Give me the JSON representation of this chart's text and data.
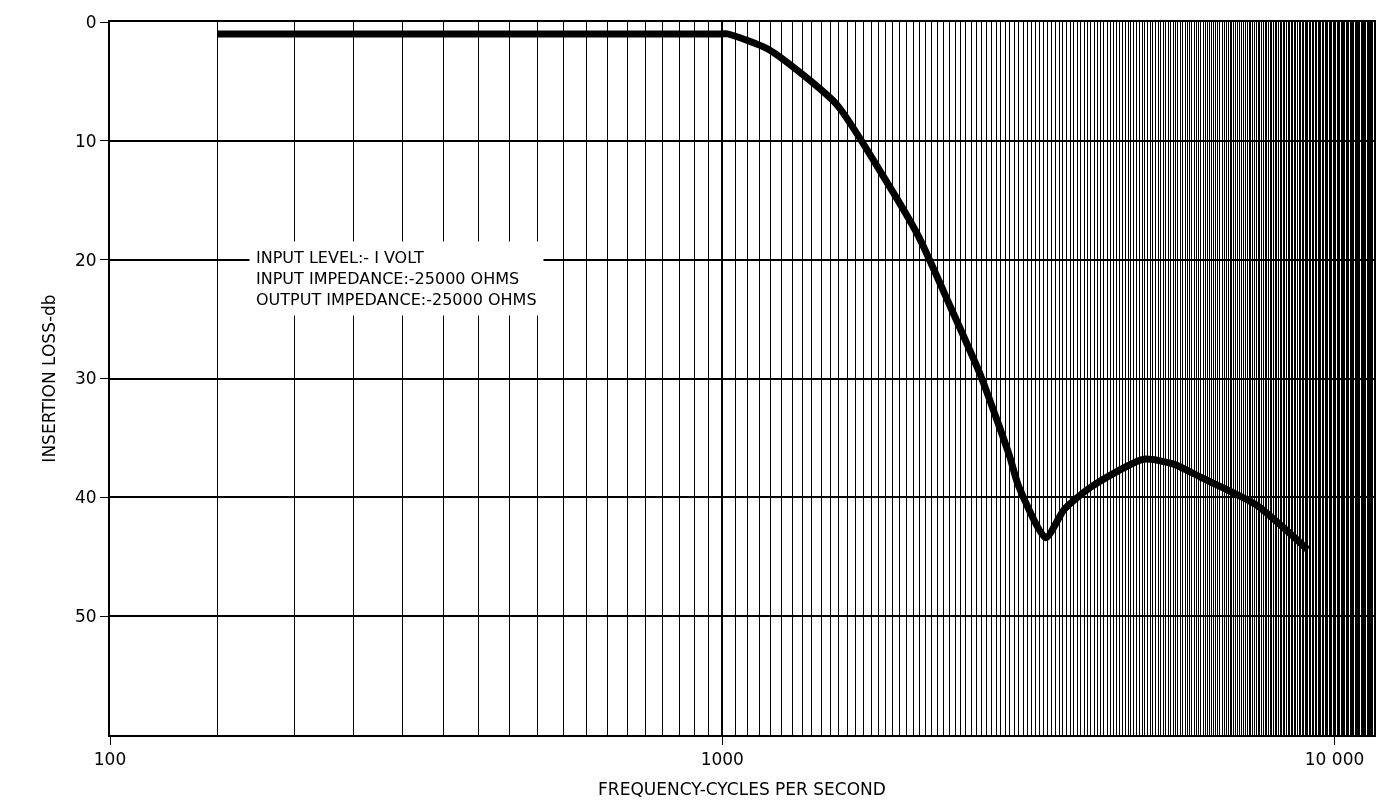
{
  "chart_data": {
    "type": "line",
    "xlabel": "FREQUENCY-CYCLES PER SECOND",
    "ylabel": "INSERTION LOSS-db",
    "annotations": [
      "INPUT LEVEL:- I VOLT\nINPUT IMPEDANCE:-25000 OHMS\nOUTPUT IMPEDANCE:-25000 OHMS"
    ],
    "log": "x",
    "xlim": [
      100,
      11600
    ],
    "xticks": [
      100,
      1000,
      {
        "value": 10000,
        "label": "10 000"
      }
    ],
    "ylim": [
      60,
      0
    ],
    "yticks": [
      0,
      10,
      20,
      30,
      40,
      50
    ],
    "grid": true,
    "legend": false,
    "marker": "none",
    "line_style": "solid",
    "series": [
      {
        "color": "#000000",
        "x": [
          150,
          500,
          1000,
          1019,
          1189,
          1535,
          1823,
          2090,
          2360,
          2640,
          2945,
          3045,
          3375,
          3620,
          4010,
          4875,
          5460,
          6040,
          7430,
          9040
        ],
        "values": [
          1,
          1,
          1,
          1,
          2.3,
          6.9,
          12.8,
          18,
          24,
          29.7,
          36.5,
          39,
          43.4,
          41,
          39.1,
          36.8,
          37.2,
          38.3,
          40.6,
          44.4
        ]
      }
    ]
  }
}
